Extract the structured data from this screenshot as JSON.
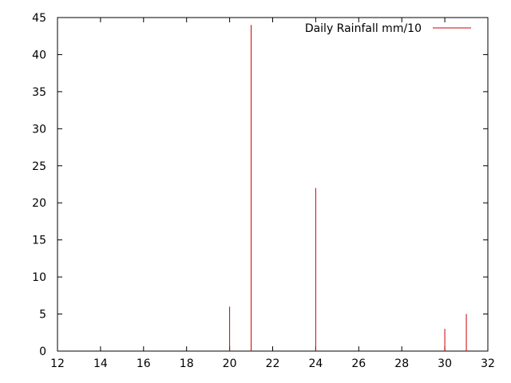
{
  "chart_data": {
    "type": "bar",
    "title": "",
    "xlabel": "",
    "ylabel": "",
    "xlim": [
      12,
      32
    ],
    "ylim": [
      0,
      45
    ],
    "x_ticks": [
      12,
      14,
      16,
      18,
      20,
      22,
      24,
      26,
      28,
      30,
      32
    ],
    "y_ticks": [
      0,
      5,
      10,
      15,
      20,
      25,
      30,
      35,
      40,
      45
    ],
    "grid": false,
    "legend_placement": "top-right",
    "series": [
      {
        "name": "Daily Rainfall mm/10",
        "color": "#cc0000",
        "points": [
          {
            "x": 20,
            "y": 6
          },
          {
            "x": 21,
            "y": 44
          },
          {
            "x": 24,
            "y": 22
          },
          {
            "x": 30,
            "y": 3
          },
          {
            "x": 31,
            "y": 5
          }
        ]
      }
    ]
  }
}
